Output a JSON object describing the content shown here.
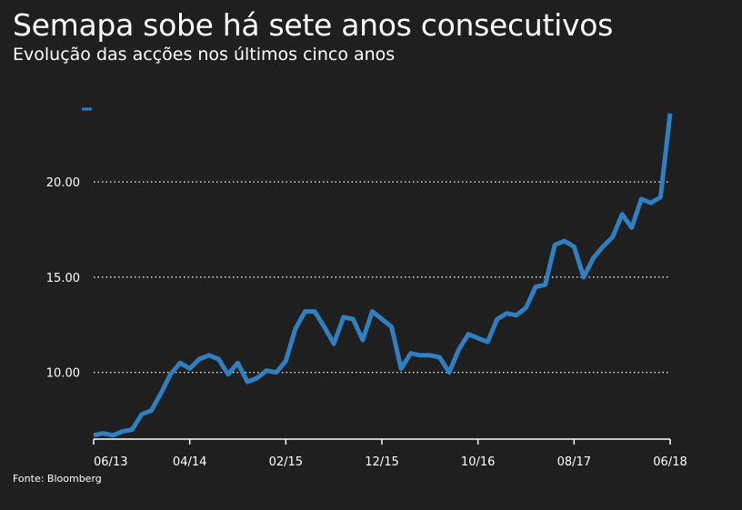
{
  "title": "Semapa sobe há sete anos consecutivos",
  "subtitle": "Evolução das acções nos últimos cinco anos",
  "source": "Fonte: Bloomberg",
  "colors": {
    "background": "#1f1f1f",
    "line": "#2f7fc1",
    "grid": "#ffffff",
    "text": "#ffffff"
  },
  "chart_data": {
    "type": "line",
    "title": "Semapa sobe há sete anos consecutivos",
    "subtitle": "Evolução das acções nos últimos cinco anos",
    "xlabel": "",
    "ylabel": "",
    "grid": "horizontal dotted",
    "legend": "none",
    "ylim": [
      6.5,
      24.3
    ],
    "y_ticks": [
      {
        "value": 10,
        "label": "10.00"
      },
      {
        "value": 15,
        "label": "15.00"
      },
      {
        "value": 20,
        "label": "20.00"
      }
    ],
    "x_ticks": [
      {
        "value": 0,
        "label": "06/13"
      },
      {
        "value": 10,
        "label": "04/14"
      },
      {
        "value": 20,
        "label": "02/15"
      },
      {
        "value": 30,
        "label": "12/15"
      },
      {
        "value": 40,
        "label": "10/16"
      },
      {
        "value": 50,
        "label": "08/17"
      },
      {
        "value": 60,
        "label": "06/18"
      }
    ],
    "xlim": [
      0,
      60
    ],
    "series": [
      {
        "values": [
          6.7,
          6.8,
          6.7,
          6.9,
          7.0,
          7.8,
          8.0,
          8.9,
          9.9,
          10.5,
          10.2,
          10.7,
          10.9,
          10.7,
          9.9,
          10.5,
          9.5,
          9.7,
          10.1,
          10.0,
          10.6,
          12.3,
          13.2,
          13.2,
          12.4,
          11.5,
          12.9,
          12.8,
          11.7,
          13.2,
          12.8,
          12.4,
          10.2,
          11.0,
          10.9,
          10.9,
          10.8,
          10.0,
          11.2,
          12.0,
          11.8,
          11.6,
          12.8,
          13.1,
          13.0,
          13.4,
          14.5,
          14.6,
          16.7,
          16.9,
          16.6,
          15.0,
          16.0,
          16.6,
          17.1,
          18.3,
          17.6,
          19.1,
          18.9,
          19.2,
          23.6
        ]
      }
    ]
  }
}
